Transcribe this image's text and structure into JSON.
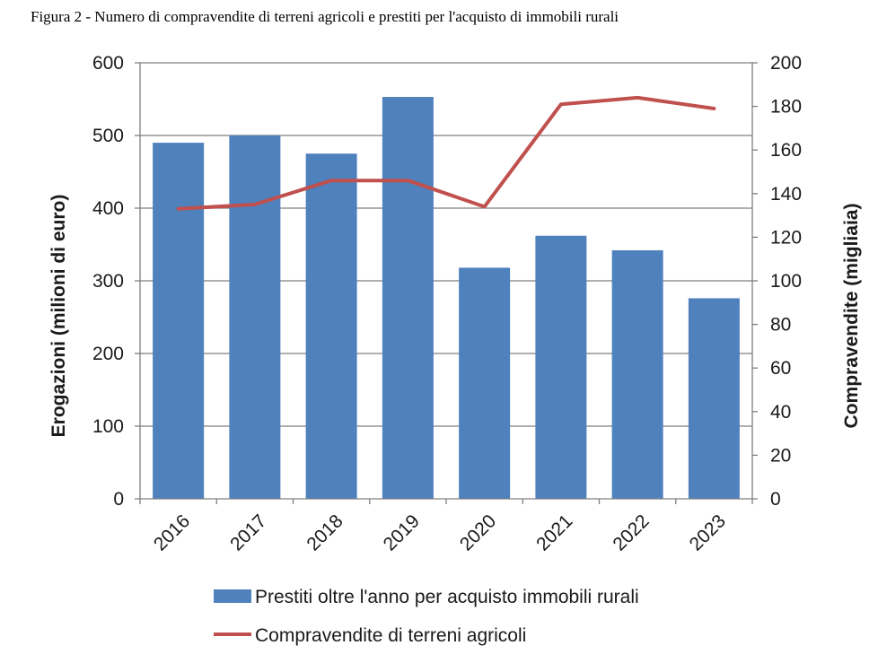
{
  "figure_title": "Figura 2 - Numero di compravendite di terreni agricoli e prestiti per l'acquisto di immobili rurali",
  "colors": {
    "bars": "#4f81bd",
    "line": "#c0504d",
    "gridline": "#7f7f7f",
    "axis": "#7f7f7f",
    "text": "#1a1a1a"
  },
  "chart_data": {
    "type": "bar",
    "categories": [
      "2016",
      "2017",
      "2018",
      "2019",
      "2020",
      "2021",
      "2022",
      "2023"
    ],
    "series": [
      {
        "name": "Prestiti oltre l'anno per acquisto immobili rurali",
        "type": "bar",
        "axis": "left",
        "values": [
          490,
          500,
          475,
          553,
          318,
          362,
          342,
          276
        ]
      },
      {
        "name": "Compravendite di terreni agricoli",
        "type": "line",
        "axis": "right",
        "values": [
          133,
          135,
          146,
          146,
          134,
          181,
          184,
          179
        ]
      }
    ],
    "ylabel": "Erogazioni (milioni di euro)",
    "y2label": "Compravendite (migliaia)",
    "xlabel": "",
    "ylim": [
      0,
      600
    ],
    "y2lim": [
      0,
      200
    ],
    "yticks": [
      "0",
      "100",
      "200",
      "300",
      "400",
      "500",
      "600"
    ],
    "y2ticks": [
      "0",
      "20",
      "40",
      "60",
      "80",
      "100",
      "120",
      "140",
      "160",
      "180",
      "200"
    ],
    "grid": "horizontal",
    "legend_position": "bottom"
  }
}
